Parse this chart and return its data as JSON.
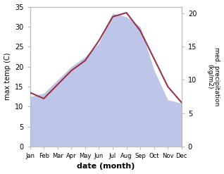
{
  "months": [
    "Jan",
    "Feb",
    "Mar",
    "Apr",
    "May",
    "Jun",
    "Jul",
    "Aug",
    "Sep",
    "Oct",
    "Nov",
    "Dec"
  ],
  "max_temp": [
    13.5,
    12.0,
    15.5,
    19.0,
    21.5,
    26.5,
    32.5,
    33.5,
    29.0,
    22.0,
    15.0,
    11.0
  ],
  "precipitation": [
    7.5,
    8.0,
    10.0,
    12.0,
    13.5,
    15.5,
    20.0,
    19.5,
    18.0,
    11.5,
    7.0,
    6.5
  ],
  "temp_color": "#993344",
  "precip_fill_color": "#bdc5e8",
  "background_color": "#ffffff",
  "xlabel": "date (month)",
  "ylabel_left": "max temp (C)",
  "ylabel_right": "med. precipitation\n(kg/m2)",
  "ylim_left": [
    0,
    35
  ],
  "ylim_right": [
    0,
    21
  ],
  "yticks_left": [
    0,
    5,
    10,
    15,
    20,
    25,
    30,
    35
  ],
  "yticks_right": [
    0,
    5,
    10,
    15,
    20
  ]
}
